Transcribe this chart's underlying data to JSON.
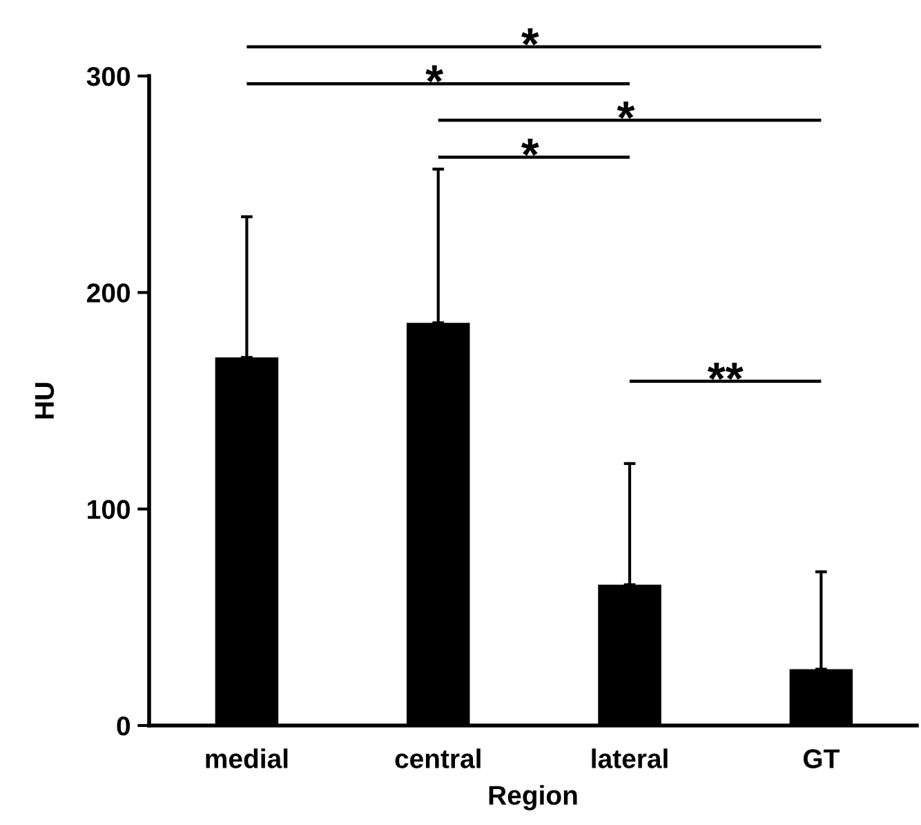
{
  "chart_data": {
    "type": "bar",
    "xlabel": "Region",
    "ylabel": "HU",
    "categories": [
      "medial",
      "central",
      "lateral",
      "GT"
    ],
    "values": [
      170,
      186,
      65,
      26
    ],
    "color": "#000000",
    "errors": [
      [
        170,
        235
      ],
      [
        186,
        257
      ],
      [
        65,
        121
      ],
      [
        26,
        71
      ]
    ],
    "ylim": [
      0,
      300
    ],
    "yticks": [
      0,
      100,
      200,
      300
    ],
    "grid": false,
    "legend": false,
    "annotations": [
      "*",
      "*",
      "*",
      "*",
      "**"
    ]
  }
}
